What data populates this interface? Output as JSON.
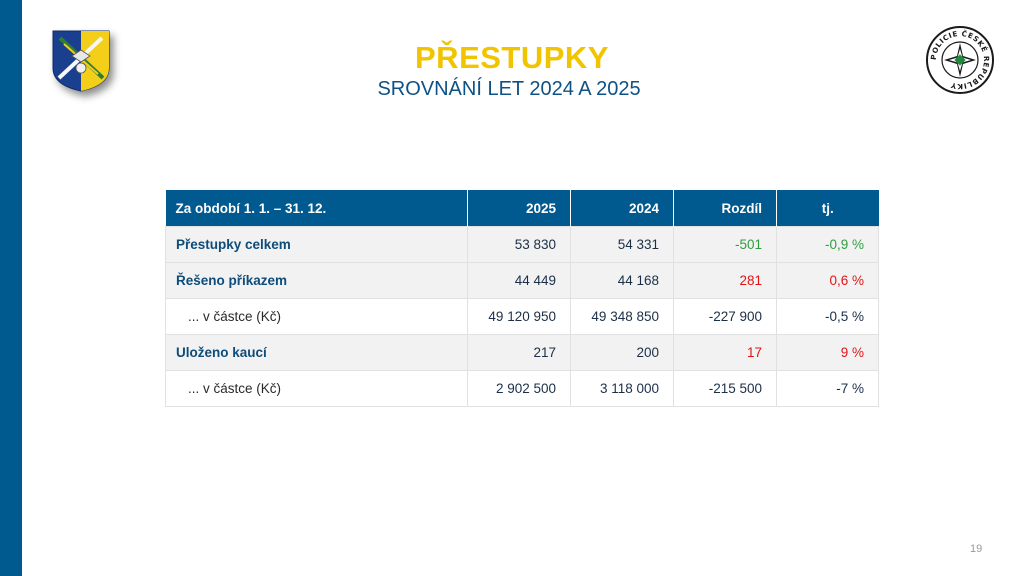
{
  "header": {
    "title": "PŘESTUPKY",
    "subtitle": "SROVNÁNÍ LET 2024 A 2025"
  },
  "logos": {
    "left": "coat-of-arms-icon",
    "right": "police-badge-icon",
    "right_text": "POLICIE ČESKÉ REPUBLIKY"
  },
  "table": {
    "columns": [
      "Za období 1. 1. – 31. 12.",
      "2025",
      "2024",
      "Rozdíl",
      "tj."
    ],
    "rows": [
      {
        "label": "Přestupky celkem",
        "v2025": "53 830",
        "v2024": "54 331",
        "diff": "-501",
        "pct": "-0,9 %"
      },
      {
        "label": "Řešeno příkazem",
        "v2025": "44 449",
        "v2024": "44 168",
        "diff": "281",
        "pct": "0,6 %"
      },
      {
        "label": "... v částce (Kč)",
        "v2025": "49 120 950",
        "v2024": "49 348 850",
        "diff": "-227 900",
        "pct": "-0,5 %"
      },
      {
        "label": "Uloženo kaucí",
        "v2025": "217",
        "v2024": "200",
        "diff": "17",
        "pct": "9 %"
      },
      {
        "label": "... v částce (Kč)",
        "v2025": "2 902 500",
        "v2024": "3 118 000",
        "diff": "-215 500",
        "pct": "-7 %"
      }
    ]
  },
  "colors": {
    "accent_blue": "#005a8f",
    "title_yellow": "#f2c400",
    "negative_green": "#2f9e3f",
    "positive_red": "#e01515"
  },
  "footer": {
    "page_number": "19"
  }
}
